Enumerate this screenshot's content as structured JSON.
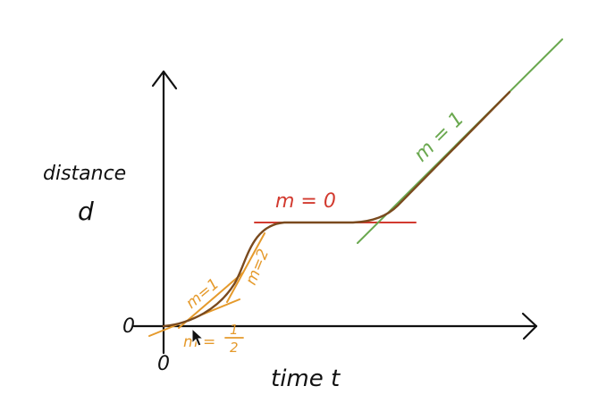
{
  "labels": {
    "y_axis_line1": "distance",
    "y_axis_line2": "d",
    "x_axis": "time t",
    "origin_y": "0",
    "origin_x": "0",
    "slope_m0": "m = 0",
    "slope_m1_green": "m = 1",
    "slope_m1_orange": "m=1",
    "slope_m2": "m=2",
    "slope_half_m": "m =",
    "slope_half_num": "1",
    "slope_half_den": "2"
  },
  "colors": {
    "axis": "#111111",
    "curve": "#7a4a1e",
    "orange": "#e59a2c",
    "red": "#d23a2f",
    "green": "#6aa84f"
  }
}
